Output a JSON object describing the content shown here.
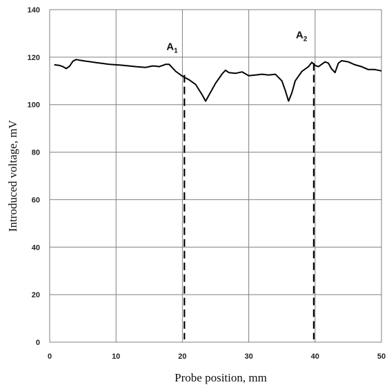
{
  "chart_data": {
    "type": "line",
    "xlabel": "Probe position, mm",
    "ylabel": "Introduced voltage, mV",
    "xlim": [
      0,
      50
    ],
    "ylim": [
      0,
      140
    ],
    "x_ticks": [
      "0",
      "10",
      "20",
      "30",
      "40",
      "50"
    ],
    "y_ticks": [
      "0",
      "20",
      "40",
      "60",
      "80",
      "100",
      "120",
      "140"
    ],
    "grid": true,
    "line_color": "#000000",
    "grid_color": "#7f7f7f",
    "series": [
      {
        "x": [
          0.7,
          1.5,
          2.0,
          2.5,
          3.0,
          3.5,
          4.0,
          4.5,
          5.5,
          7,
          9,
          11,
          13,
          14.5,
          15,
          15.5,
          16,
          16.5,
          17,
          17.5,
          18.0,
          18.5,
          19,
          20,
          21,
          22,
          23,
          23.5,
          24,
          25,
          26,
          26.5,
          27,
          28,
          29,
          30,
          31,
          32,
          33,
          34,
          35,
          35.5,
          36,
          36.5,
          37,
          38,
          39,
          39.5,
          40,
          40.5,
          41,
          41.5,
          42,
          42.5,
          43,
          43.5,
          44,
          45,
          46,
          47,
          48,
          49,
          50
        ],
        "y": [
          116.8,
          116.5,
          116.0,
          115.2,
          116.2,
          118.3,
          119.0,
          118.7,
          118.3,
          117.7,
          117.0,
          116.6,
          116.0,
          115.7,
          116.0,
          116.3,
          116.2,
          116.0,
          116.5,
          117.0,
          117.0,
          115.5,
          114.0,
          112.0,
          110.5,
          108.5,
          104.0,
          101.5,
          104.0,
          109.0,
          113.0,
          114.5,
          113.5,
          113.2,
          113.8,
          112.2,
          112.5,
          112.8,
          112.5,
          112.8,
          110.0,
          106.0,
          101.5,
          105.0,
          110.0,
          114.0,
          116.0,
          117.8,
          116.5,
          116.0,
          117.0,
          118.0,
          117.5,
          115.0,
          113.5,
          117.5,
          118.5,
          118.0,
          116.8,
          116.0,
          114.8,
          114.8,
          114.2
        ]
      }
    ],
    "markers": [
      {
        "label": "A",
        "sub": "1",
        "x": 20.3,
        "y": 112.5
      },
      {
        "label": "A",
        "sub": "2",
        "x": 39.8,
        "y": 117.5
      }
    ]
  }
}
